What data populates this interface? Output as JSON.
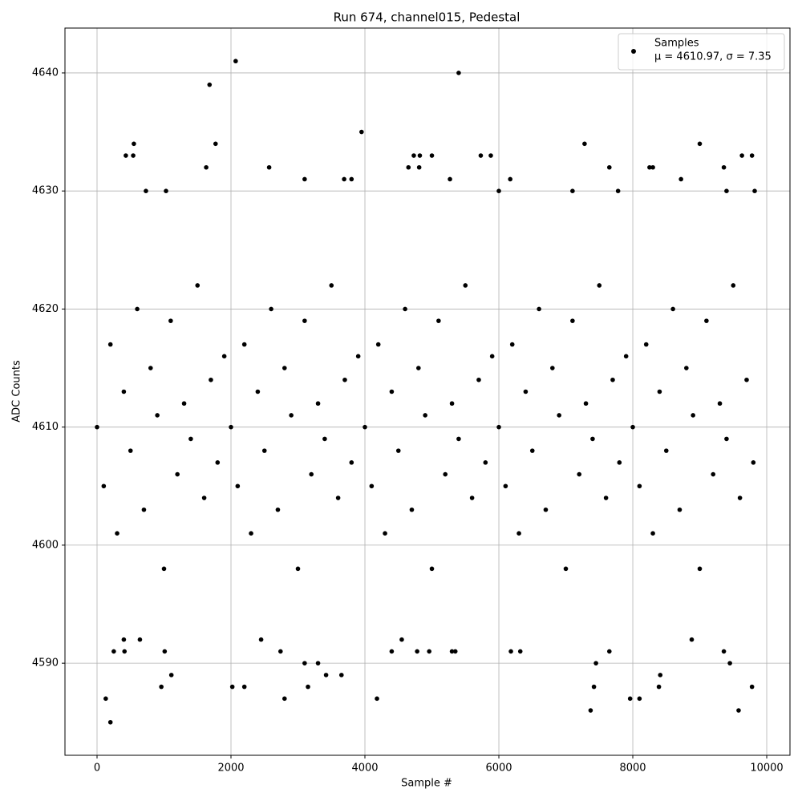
{
  "chart_data": {
    "type": "scatter",
    "title": "Run 674, channel015, Pedestal",
    "x_label": "Sample #",
    "y_label": "ADC Counts",
    "xlim": [
      -479,
      10347
    ],
    "ylim": [
      4582.2,
      4643.8
    ],
    "xticks": [
      0,
      2000,
      4000,
      6000,
      8000,
      10000
    ],
    "yticks": [
      4590,
      4600,
      4610,
      4620,
      4630,
      4640
    ],
    "grid": true,
    "legend_position": "upper right",
    "series": [
      {
        "name": "Samples",
        "legend_note": "μ = 4610.97, σ = 7.35",
        "color": "#000000",
        "x": [
          0,
          100,
          200,
          300,
          400,
          500,
          600,
          700,
          800,
          900,
          1000,
          1100,
          1200,
          1300,
          1400,
          1500,
          1600,
          1700,
          1800,
          1900,
          2000,
          2100,
          2200,
          2300,
          2400,
          2500,
          2600,
          2700,
          2800,
          2900,
          3000,
          3100,
          3200,
          3300,
          3400,
          3500,
          3600,
          3700,
          3800,
          3900,
          4000,
          4100,
          4200,
          4300,
          4400,
          4500,
          4600,
          4700,
          4800,
          4900,
          5000,
          5100,
          5200,
          5300,
          5400,
          5500,
          5600,
          5700,
          5800,
          5900,
          6000,
          6100,
          6200,
          6300,
          6400,
          6500,
          6600,
          6700,
          6800,
          6900,
          7000,
          7100,
          7200,
          7300,
          7400,
          7500,
          7600,
          7700,
          7800,
          7900,
          8000,
          8100,
          8200,
          8300,
          8400,
          8500,
          8600,
          8700,
          8800,
          8900,
          9000,
          9100,
          9200,
          9300,
          9400,
          9500,
          9600,
          9700,
          9800,
          200,
          130,
          1680,
          2070,
          5400,
          3950,
          550,
          1770,
          7280,
          9000,
          2020,
          2200,
          960,
          1110,
          2800,
          4180,
          3150,
          3300,
          3420,
          3650,
          7370,
          7420,
          7450,
          7960,
          8100,
          8390,
          8410,
          9580,
          9780,
          9450,
          250,
          1010,
          4400,
          4780,
          4960,
          5300,
          5350,
          6180,
          6320,
          7650,
          8880,
          9360,
          3100,
          400,
          410,
          640,
          2450,
          2740,
          4550,
          4730,
          4820,
          5000,
          5730,
          5880,
          9630,
          9780,
          430,
          540,
          3800,
          3690,
          4650,
          4810,
          5270,
          6170,
          7650,
          8250,
          8300,
          8720,
          9360,
          1630,
          2570,
          3100,
          6000,
          7100,
          7780,
          9400,
          1030,
          730,
          9820
        ],
        "values": [
          4610,
          4605,
          4617,
          4601,
          4613,
          4608,
          4620,
          4603,
          4615,
          4611,
          4598,
          4619,
          4606,
          4612,
          4609,
          4622,
          4604,
          4614,
          4607,
          4616,
          4610,
          4605,
          4617,
          4601,
          4613,
          4608,
          4620,
          4603,
          4615,
          4611,
          4598,
          4619,
          4606,
          4612,
          4609,
          4622,
          4604,
          4614,
          4607,
          4616,
          4610,
          4605,
          4617,
          4601,
          4613,
          4608,
          4620,
          4603,
          4615,
          4611,
          4598,
          4619,
          4606,
          4612,
          4609,
          4622,
          4604,
          4614,
          4607,
          4616,
          4610,
          4605,
          4617,
          4601,
          4613,
          4608,
          4620,
          4603,
          4615,
          4611,
          4598,
          4619,
          4606,
          4612,
          4609,
          4622,
          4604,
          4614,
          4607,
          4616,
          4610,
          4605,
          4617,
          4601,
          4613,
          4608,
          4620,
          4603,
          4615,
          4611,
          4598,
          4619,
          4606,
          4612,
          4609,
          4622,
          4604,
          4614,
          4607,
          4585,
          4587,
          4639,
          4641,
          4640,
          4635,
          4634,
          4634,
          4634,
          4634,
          4588,
          4588,
          4588,
          4589,
          4587,
          4587,
          4588,
          4590,
          4589,
          4589,
          4586,
          4588,
          4590,
          4587,
          4587,
          4588,
          4589,
          4586,
          4588,
          4590,
          4591,
          4591,
          4591,
          4591,
          4591,
          4591,
          4591,
          4591,
          4591,
          4591,
          4592,
          4591,
          4590,
          4592,
          4591,
          4592,
          4592,
          4591,
          4592,
          4633,
          4633,
          4633,
          4633,
          4633,
          4633,
          4633,
          4633,
          4633,
          4631,
          4631,
          4632,
          4632,
          4631,
          4631,
          4632,
          4632,
          4632,
          4631,
          4632,
          4632,
          4632,
          4631,
          4630,
          4630,
          4630,
          4630,
          4630,
          4630,
          4630
        ]
      }
    ]
  }
}
